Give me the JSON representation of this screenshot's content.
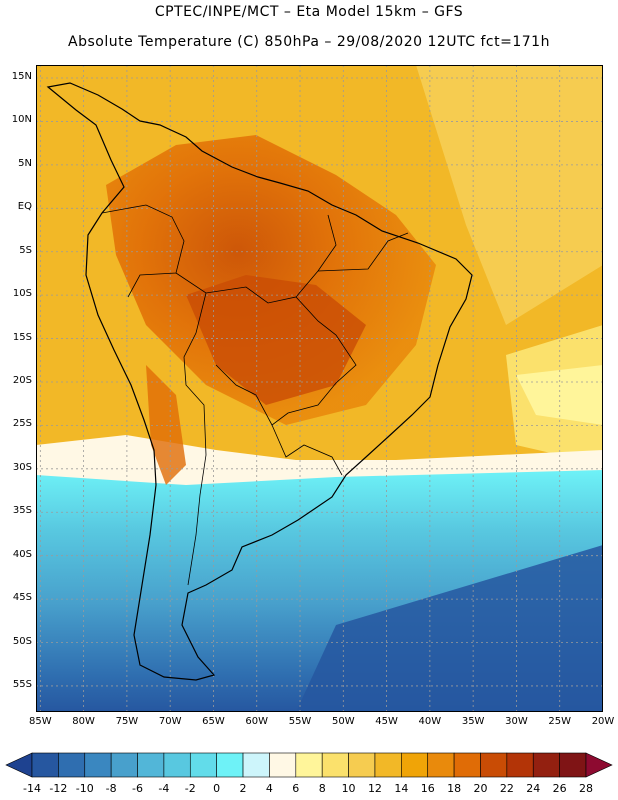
{
  "header": {
    "line1": "CPTEC/INPE/MCT –  Eta Model 15km – GFS",
    "line2": "Absolute Temperature (C) 850hPa – 29/08/2020 12UTC fct=171h"
  },
  "map": {
    "lat_labels": [
      "15N",
      "10N",
      "5N",
      "EQ",
      "5S",
      "10S",
      "15S",
      "20S",
      "25S",
      "30S",
      "35S",
      "40S",
      "45S",
      "50S",
      "55S"
    ],
    "lat_values": [
      15,
      10,
      5,
      0,
      -5,
      -10,
      -15,
      -20,
      -25,
      -30,
      -35,
      -40,
      -45,
      -50,
      -55
    ],
    "lon_labels": [
      "85W",
      "80W",
      "75W",
      "70W",
      "65W",
      "60W",
      "55W",
      "50W",
      "45W",
      "40W",
      "35W",
      "30W",
      "25W",
      "20W"
    ],
    "lon_values": [
      -85,
      -80,
      -75,
      -70,
      -65,
      -60,
      -55,
      -50,
      -45,
      -40,
      -35,
      -30,
      -25,
      -20
    ],
    "lat_range": [
      -58,
      16.5
    ],
    "lon_range": [
      -85.5,
      -20
    ]
  },
  "colorbar": {
    "labels": [
      "-14",
      "-12",
      "-10",
      "-8",
      "-6",
      "-4",
      "-2",
      "0",
      "2",
      "4",
      "6",
      "8",
      "10",
      "12",
      "14",
      "16",
      "18",
      "20",
      "22",
      "24",
      "26",
      "28"
    ],
    "colors": [
      "#1e4290",
      "#2657a0",
      "#2f6eb0",
      "#3a87c0",
      "#48a0cc",
      "#52b6d8",
      "#58c8e0",
      "#62dcea",
      "#6ef2f7",
      "#cdf5fb",
      "#fff8e5",
      "#fff59a",
      "#fbe16c",
      "#f6cc50",
      "#f2b827",
      "#f0a407",
      "#e98a0c",
      "#e06c06",
      "#c94c05",
      "#b33407",
      "#932010",
      "#7f1415",
      "#8d0a30"
    ],
    "unit": "C"
  }
}
